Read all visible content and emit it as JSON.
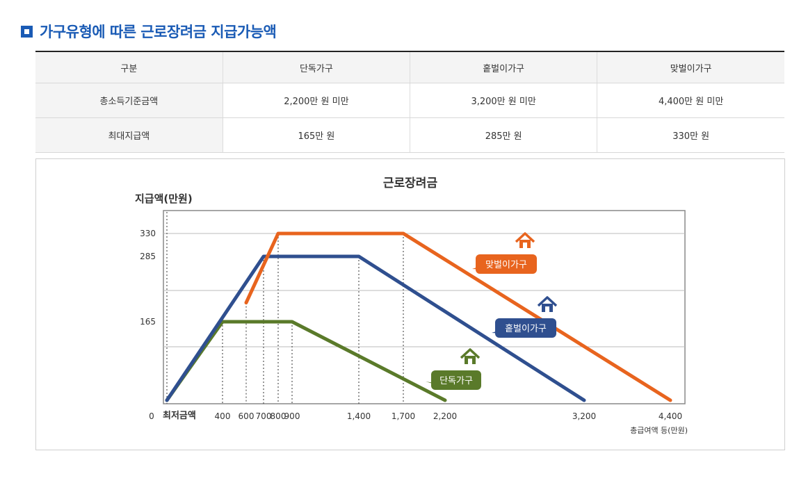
{
  "heading": {
    "title": "가구유형에 따른 근로장려금 지급가능액"
  },
  "table": {
    "headers": [
      "구분",
      "단독가구",
      "홑벌이가구",
      "맞벌이가구"
    ],
    "rows": [
      [
        "총소득기준금액",
        "2,200만 원 미만",
        "3,200만 원 미만",
        "4,400만 원 미만"
      ],
      [
        "최대지급액",
        "165만 원",
        "285만 원",
        "330만 원"
      ]
    ]
  },
  "chart_data": {
    "type": "line",
    "title": "근로장려금",
    "ylabel": "지급액(만원)",
    "xlabel": "총급여액 등(만원)",
    "x_origin_label": "0",
    "x_min_label": "최저금액",
    "x_ticks": [
      {
        "value": 400,
        "label": "400"
      },
      {
        "value": 600,
        "label": "600"
      },
      {
        "value": 700,
        "label": "700"
      },
      {
        "value": 800,
        "label": "800"
      },
      {
        "value": 900,
        "label": "900"
      },
      {
        "value": 1400,
        "label": "1,400"
      },
      {
        "value": 1700,
        "label": "1,700"
      },
      {
        "value": 2200,
        "label": "2,200"
      },
      {
        "value": 3200,
        "label": "3,200"
      },
      {
        "value": 4400,
        "label": "4,400"
      }
    ],
    "y_ticks": [
      {
        "value": 165,
        "label": "165"
      },
      {
        "value": 285,
        "label": "285"
      },
      {
        "value": 330,
        "label": "330"
      }
    ],
    "series": [
      {
        "name": "단독가구",
        "color": "#5a7a2a",
        "points": [
          [
            0,
            0
          ],
          [
            400,
            165
          ],
          [
            900,
            165
          ],
          [
            2200,
            0
          ]
        ]
      },
      {
        "name": "홑벌이가구",
        "color": "#2f4f8f",
        "points": [
          [
            0,
            0
          ],
          [
            700,
            285
          ],
          [
            1400,
            285
          ],
          [
            3200,
            0
          ]
        ]
      },
      {
        "name": "맞벌이가구",
        "color": "#e8641e",
        "points": [
          [
            600,
            200
          ],
          [
            800,
            330
          ],
          [
            1700,
            330
          ],
          [
            4400,
            0
          ]
        ]
      }
    ],
    "legend_placement": "inline labels on each line",
    "grid": true
  }
}
